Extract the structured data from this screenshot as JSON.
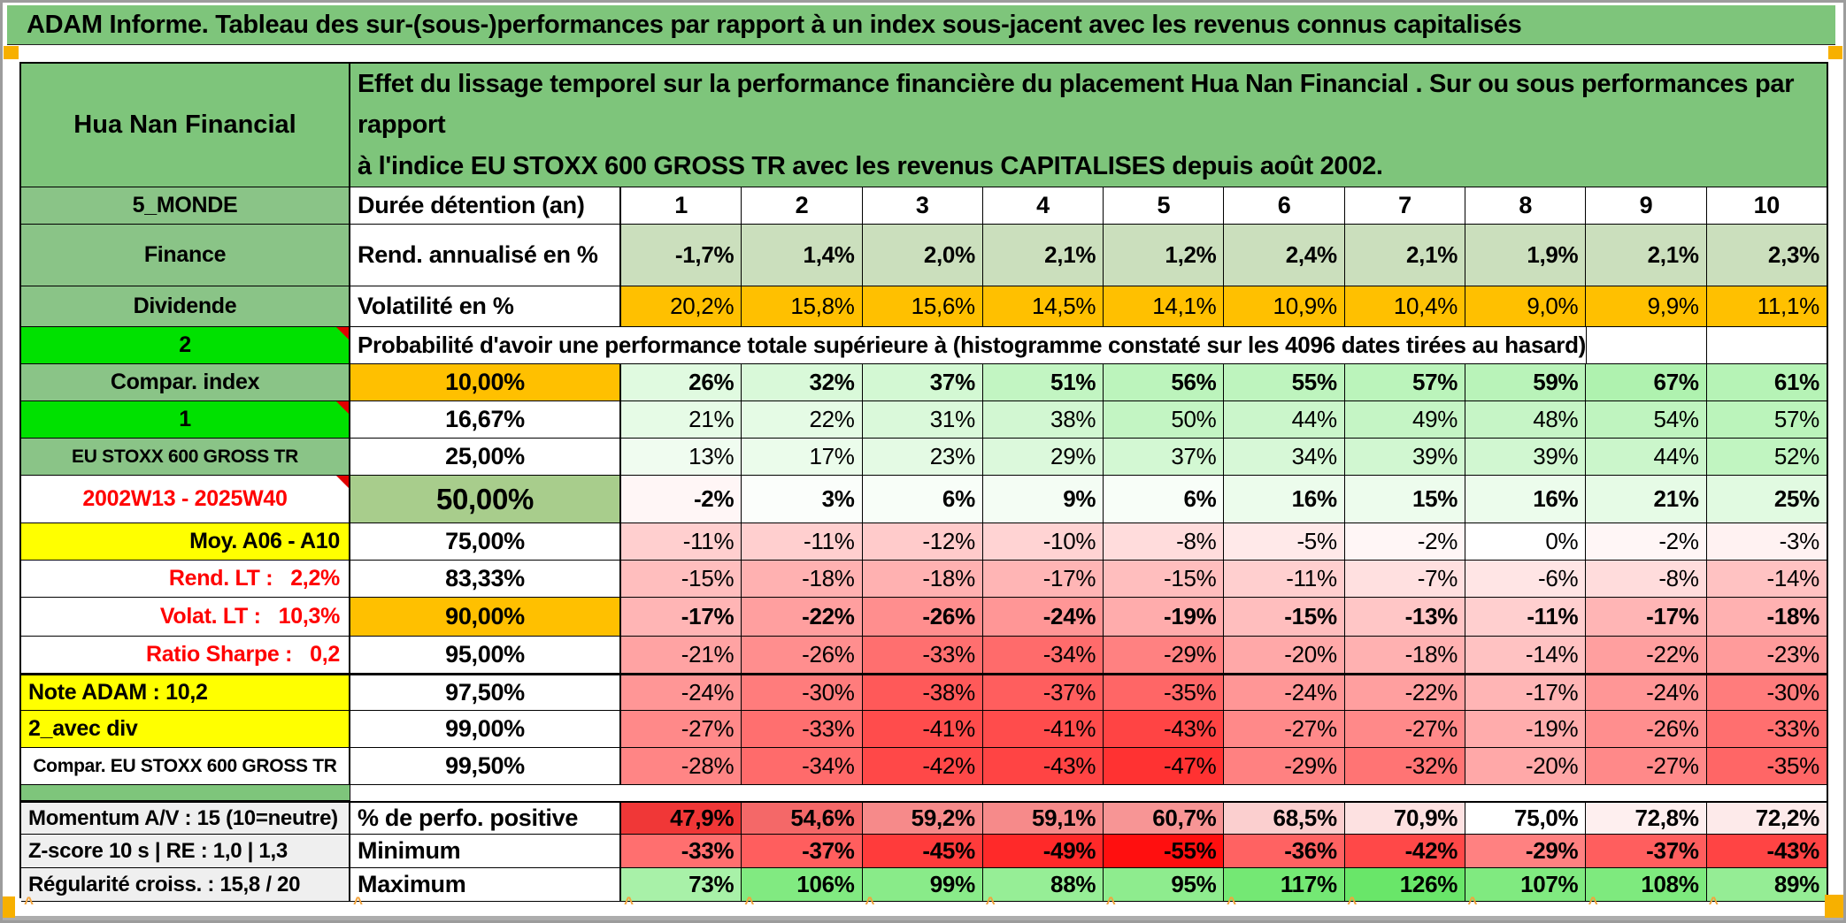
{
  "title": "ADAM Informe. Tableau des sur-(sous-)performances par rapport à un index sous-jacent avec les revenus connus capitalisés",
  "header": {
    "fund_name": "Hua Nan Financial",
    "description": "Effet du lissage temporel sur la performance financière du placement Hua Nan Financial . Sur ou sous performances par rapport\nà l'indice EU STOXX 600 GROSS TR avec les revenus CAPITALISES depuis août 2002."
  },
  "banner_text": "Probabilité d'avoir une performance totale supérieure à (histogramme constaté sur les 4096 dates tirées au hasard)",
  "footer_mark_glyph": "^",
  "colors": {
    "title_green": "#7ec57b",
    "label_green": "#8ac487",
    "bright_green": "#00e100",
    "orange": "#ffc000",
    "yellow": "#ffff00",
    "sage_green": "#a8cd8c",
    "muted_cell_green": "#cbdfbd",
    "gray_label": "#efefef",
    "red_text": "#ff0000",
    "negative_red": "#ff0f0f",
    "positive_green": "#69e669",
    "marker_orange": "#f7b000"
  },
  "rows": [
    {
      "type": "data",
      "label": "5_MONDE",
      "label_style": "green",
      "col2": "Durée détention (an)",
      "col2_fill": "white",
      "col2_align": "left",
      "cells": "header",
      "bold": true,
      "values": [
        "1",
        "2",
        "3",
        "4",
        "5",
        "6",
        "7",
        "8",
        "9",
        "10"
      ]
    },
    {
      "type": "data",
      "label": "Finance",
      "label_style": "green",
      "col2": "Rend. annualisé en %",
      "col2_fill": "white",
      "col2_align": "left",
      "cells": "muted",
      "bold": true,
      "values": [
        "-1,7%",
        "1,4%",
        "2,0%",
        "2,1%",
        "1,2%",
        "2,4%",
        "2,1%",
        "1,9%",
        "2,1%",
        "2,3%"
      ]
    },
    {
      "type": "data",
      "label": "Dividende",
      "label_style": "green",
      "col2": "Volatilité en %",
      "col2_fill": "white",
      "col2_align": "left",
      "cells": "orange",
      "bold": false,
      "values": [
        "20,2%",
        "15,8%",
        "15,6%",
        "14,5%",
        "14,1%",
        "10,9%",
        "10,4%",
        "9,0%",
        "9,9%",
        "11,1%"
      ]
    },
    {
      "type": "banner",
      "label": "2",
      "label_style": "bright",
      "note": true
    },
    {
      "type": "data",
      "label": "Compar. index",
      "label_style": "green",
      "col2": "10,00%",
      "col2_fill": "orange",
      "cells": "scale",
      "bold": true,
      "values": [
        "26%",
        "32%",
        "37%",
        "51%",
        "56%",
        "55%",
        "57%",
        "59%",
        "67%",
        "61%"
      ]
    },
    {
      "type": "data",
      "label": "1",
      "label_style": "bright",
      "note": true,
      "col2": "16,67%",
      "col2_fill": "white",
      "cells": "scale",
      "bold": false,
      "values": [
        "21%",
        "22%",
        "31%",
        "38%",
        "50%",
        "44%",
        "49%",
        "48%",
        "54%",
        "57%"
      ]
    },
    {
      "type": "data",
      "label": "EU STOXX 600 GROSS TR",
      "label_style": "green",
      "label_small": true,
      "col2": "25,00%",
      "col2_fill": "white",
      "cells": "scale",
      "bold": false,
      "values": [
        "13%",
        "17%",
        "23%",
        "29%",
        "37%",
        "34%",
        "39%",
        "39%",
        "44%",
        "52%"
      ]
    },
    {
      "type": "data",
      "label": "2002W13 - 2025W40",
      "label_style": "white-red",
      "note": true,
      "col2": "50,00%",
      "col2_fill": "sage",
      "col2_big": true,
      "cells": "scale",
      "bold": true,
      "values": [
        "-2%",
        "3%",
        "6%",
        "9%",
        "6%",
        "16%",
        "15%",
        "16%",
        "21%",
        "25%"
      ]
    },
    {
      "type": "data",
      "label": "Moy. A06 - A10",
      "label_style": "yellow-right",
      "col2": "75,00%",
      "col2_fill": "white",
      "cells": "scale",
      "bold": false,
      "values": [
        "-11%",
        "-11%",
        "-12%",
        "-10%",
        "-8%",
        "-5%",
        "-2%",
        "0%",
        "-2%",
        "-3%"
      ]
    },
    {
      "type": "data",
      "label": "Rend. LT :   2,2%",
      "label_style": "white-red-right",
      "col2": "83,33%",
      "col2_fill": "white",
      "cells": "scale",
      "bold": false,
      "values": [
        "-15%",
        "-18%",
        "-18%",
        "-17%",
        "-15%",
        "-11%",
        "-7%",
        "-6%",
        "-8%",
        "-14%"
      ]
    },
    {
      "type": "data",
      "label": "Volat. LT :   10,3%",
      "label_style": "white-red-right",
      "col2": "90,00%",
      "col2_fill": "orange",
      "cells": "scale",
      "bold": true,
      "values": [
        "-17%",
        "-22%",
        "-26%",
        "-24%",
        "-19%",
        "-15%",
        "-13%",
        "-11%",
        "-17%",
        "-18%"
      ]
    },
    {
      "type": "data",
      "label": "Ratio Sharpe :   0,2",
      "label_style": "white-red-right",
      "col2": "95,00%",
      "col2_fill": "white",
      "cells": "scale",
      "bold": false,
      "values": [
        "-21%",
        "-26%",
        "-33%",
        "-34%",
        "-29%",
        "-20%",
        "-18%",
        "-14%",
        "-22%",
        "-23%"
      ]
    },
    {
      "type": "data",
      "label": "Note ADAM : 10,2",
      "label_style": "yellow-left",
      "thick_top": true,
      "col2": "97,50%",
      "col2_fill": "white",
      "cells": "scale",
      "bold": false,
      "values": [
        "-24%",
        "-30%",
        "-38%",
        "-37%",
        "-35%",
        "-24%",
        "-22%",
        "-17%",
        "-24%",
        "-30%"
      ]
    },
    {
      "type": "data",
      "label": "2_avec div",
      "label_style": "yellow-left",
      "col2": "99,00%",
      "col2_fill": "white",
      "cells": "scale",
      "bold": false,
      "values": [
        "-27%",
        "-33%",
        "-41%",
        "-41%",
        "-43%",
        "-27%",
        "-27%",
        "-19%",
        "-26%",
        "-33%"
      ]
    },
    {
      "type": "data",
      "label": "Compar. EU STOXX 600 GROSS TR",
      "label_style": "white-center",
      "label_small": true,
      "col2": "99,50%",
      "col2_fill": "white",
      "cells": "scale",
      "bold": false,
      "values": [
        "-28%",
        "-34%",
        "-42%",
        "-43%",
        "-47%",
        "-29%",
        "-32%",
        "-20%",
        "-27%",
        "-35%"
      ]
    },
    {
      "type": "separator"
    },
    {
      "type": "data",
      "label": "Momentum A/V : 15 (10=neutre)",
      "label_style": "gray-left",
      "thick_top": true,
      "col2": "% de perfo. positive",
      "col2_fill": "white",
      "col2_align": "left",
      "cells": "perfo",
      "bold": true,
      "values": [
        "47,9%",
        "54,6%",
        "59,2%",
        "59,1%",
        "60,7%",
        "68,5%",
        "70,9%",
        "75,0%",
        "72,8%",
        "72,2%"
      ]
    },
    {
      "type": "data",
      "label": "Z-score 10 s | RE : 1,0 | 1,3",
      "label_style": "gray-left",
      "col2": "Minimum",
      "col2_fill": "white",
      "col2_align": "left",
      "cells": "scale",
      "bold": true,
      "values": [
        "-33%",
        "-37%",
        "-45%",
        "-49%",
        "-55%",
        "-36%",
        "-42%",
        "-29%",
        "-37%",
        "-43%"
      ]
    },
    {
      "type": "data",
      "label": "Régularité croiss. : 15,8 / 20",
      "label_style": "gray-left",
      "col2": "Maximum",
      "col2_fill": "white",
      "col2_align": "left",
      "cells": "scale",
      "bold": true,
      "values": [
        "73%",
        "106%",
        "99%",
        "88%",
        "95%",
        "117%",
        "126%",
        "107%",
        "108%",
        "89%"
      ]
    }
  ]
}
